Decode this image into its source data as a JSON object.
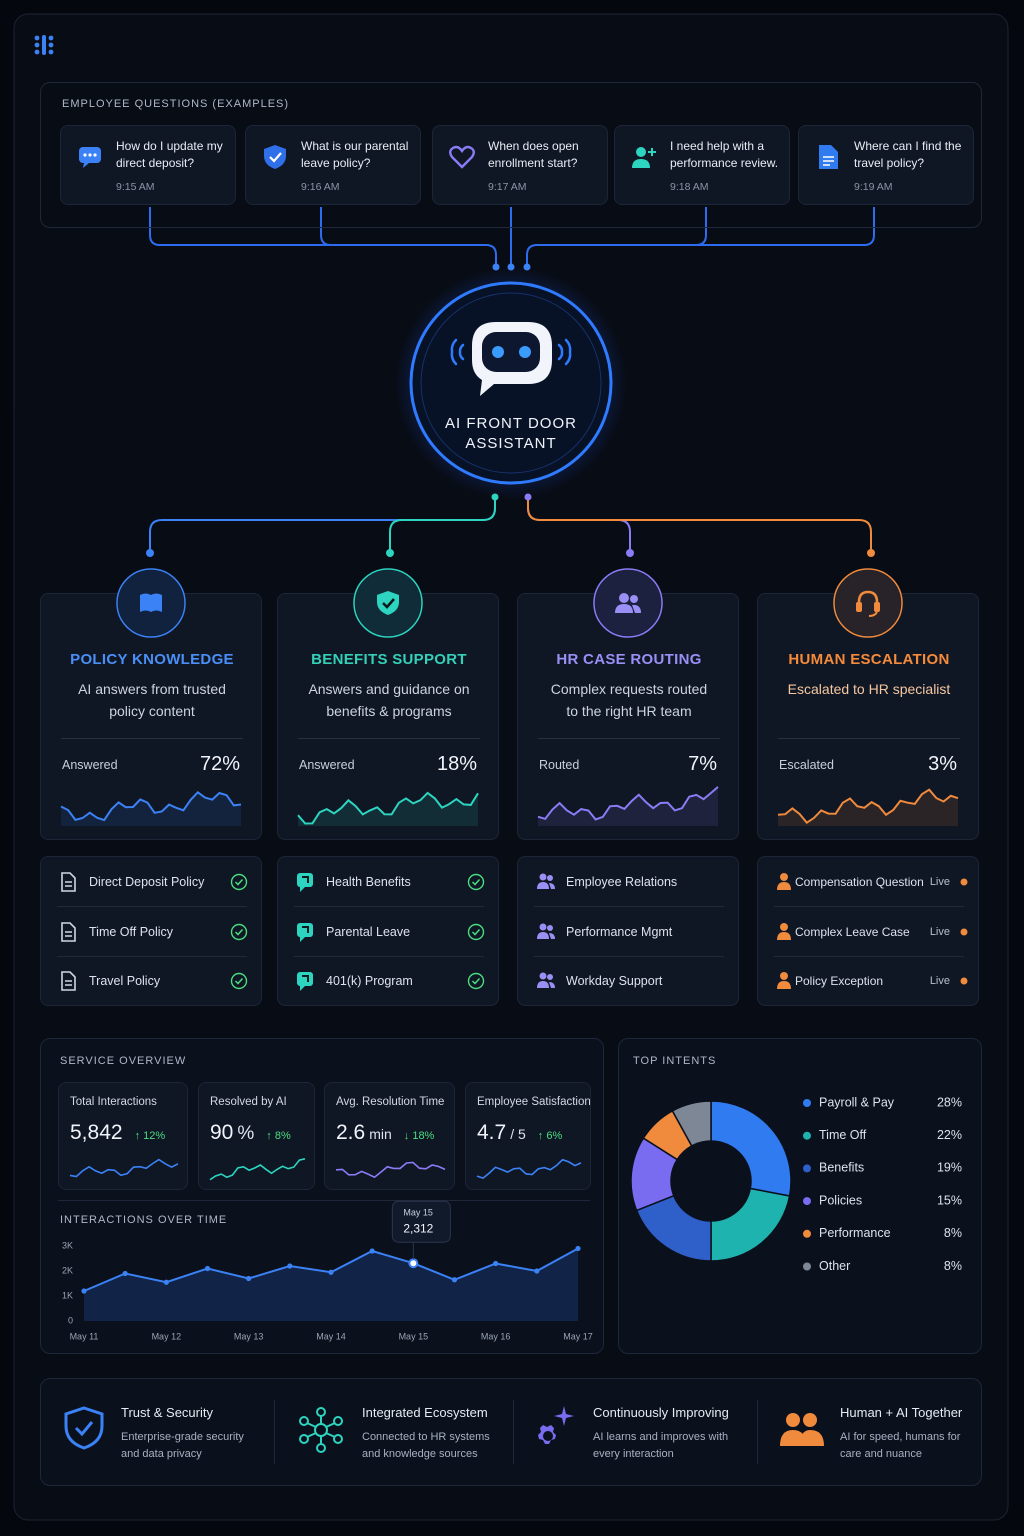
{
  "header": {
    "section_title": "EMPLOYEE QUESTIONS (EXAMPLES)"
  },
  "questions": [
    {
      "text": "How do I update my direct deposit?",
      "time": "9:15 AM"
    },
    {
      "text": "What is our parental leave policy?",
      "time": "9:16 AM"
    },
    {
      "text": "When does open enrollment start?",
      "time": "9:17 AM"
    },
    {
      "text": "I need help with a performance review.",
      "time": "9:18 AM"
    },
    {
      "text": "Where can I find the travel policy?",
      "time": "9:19 AM"
    }
  ],
  "assistant": {
    "label": "AI FRONT DOOR ASSISTANT"
  },
  "channels": [
    {
      "title": "POLICY KNOWLEDGE",
      "description": "AI answers from trusted policy content",
      "metric_label": "Answered",
      "metric": "72%",
      "items": [
        {
          "name": "Direct Deposit Policy"
        },
        {
          "name": "Time Off Policy"
        },
        {
          "name": "Travel Policy"
        }
      ]
    },
    {
      "title": "BENEFITS SUPPORT",
      "description": "Answers and guidance on benefits & programs",
      "metric_label": "Answered",
      "metric": "18%",
      "items": [
        {
          "name": "Health Benefits"
        },
        {
          "name": "Parental Leave"
        },
        {
          "name": "401(k) Program"
        }
      ]
    },
    {
      "title": "HR CASE ROUTING",
      "description": "Complex requests routed to the right HR team",
      "metric_label": "Routed",
      "metric": "7%",
      "items": [
        {
          "name": "Employee Relations"
        },
        {
          "name": "Performance Mgmt"
        },
        {
          "name": "Workday Support"
        }
      ]
    },
    {
      "title": "HUMAN ESCALATION",
      "description": "Escalated to HR specialist",
      "metric_label": "Escalated",
      "metric": "3%",
      "items": [
        {
          "name": "Compensation Question",
          "status": "Live"
        },
        {
          "name": "Complex Leave Case",
          "status": "Live"
        },
        {
          "name": "Policy Exception",
          "status": "Live"
        }
      ]
    }
  ],
  "service_overview": {
    "title": "SERVICE OVERVIEW",
    "kpis": [
      {
        "label": "Total Interactions",
        "value": "5,842",
        "change": "↑ 12%"
      },
      {
        "label": "Resolved by AI",
        "value": "90",
        "unit": "%",
        "change": "↑ 8%"
      },
      {
        "label": "Avg. Resolution Time",
        "value": "2.6",
        "unit": "min",
        "change": "↓ 18%"
      },
      {
        "label": "Employee Satisfaction",
        "value": "4.7",
        "unit": "/ 5",
        "change": "↑ 6%"
      }
    ]
  },
  "chart_data": [
    {
      "type": "line",
      "title": "INTERACTIONS OVER TIME",
      "categories": [
        "May 11",
        null,
        "May 12",
        null,
        "May 13",
        null,
        "May 14",
        null,
        "May 15",
        null,
        "May 16",
        null,
        "May 17"
      ],
      "series": [
        {
          "name": "Interactions",
          "color": "#3b82f6",
          "values": [
            1200,
            1900,
            1550,
            2100,
            1700,
            2200,
            1950,
            2800,
            2312,
            1650,
            2300,
            2000,
            2900
          ],
          "value_labels": [
            null,
            null,
            null,
            null,
            null,
            null,
            null,
            null,
            "2,312",
            null,
            null,
            null,
            null
          ]
        }
      ],
      "ylim": [
        0,
        3200
      ],
      "yticks": [
        0,
        {
          "value": 1000,
          "label": "1K"
        },
        {
          "value": 2000,
          "label": "2K"
        },
        {
          "value": 3000,
          "label": "3K"
        }
      ],
      "grid": false
    },
    {
      "type": "pie",
      "donut": true,
      "title": "TOP INTENTS",
      "categories": [
        "Payroll & Pay",
        "Time Off",
        "Benefits",
        "Policies",
        "Performance",
        "Other"
      ],
      "values": [
        28,
        22,
        19,
        15,
        8,
        8
      ],
      "value_labels": [
        "28%",
        "22%",
        "19%",
        "15%",
        "8%",
        "8%"
      ],
      "colors": [
        "#2f7bef",
        "#1fb3b0",
        "#2f5fc8",
        "#7a6cf0",
        "#f08a3c",
        "#7d8796"
      ]
    }
  ],
  "features": [
    {
      "title": "Trust & Security",
      "description": "Enterprise-grade security and data privacy"
    },
    {
      "title": "Integrated Ecosystem",
      "description": "Connected to HR systems and knowledge sources"
    },
    {
      "title": "Continuously Improving",
      "description": "AI learns and improves with every interaction"
    },
    {
      "title": "Human + AI Together",
      "description": "AI for speed, humans for care and nuance"
    }
  ]
}
